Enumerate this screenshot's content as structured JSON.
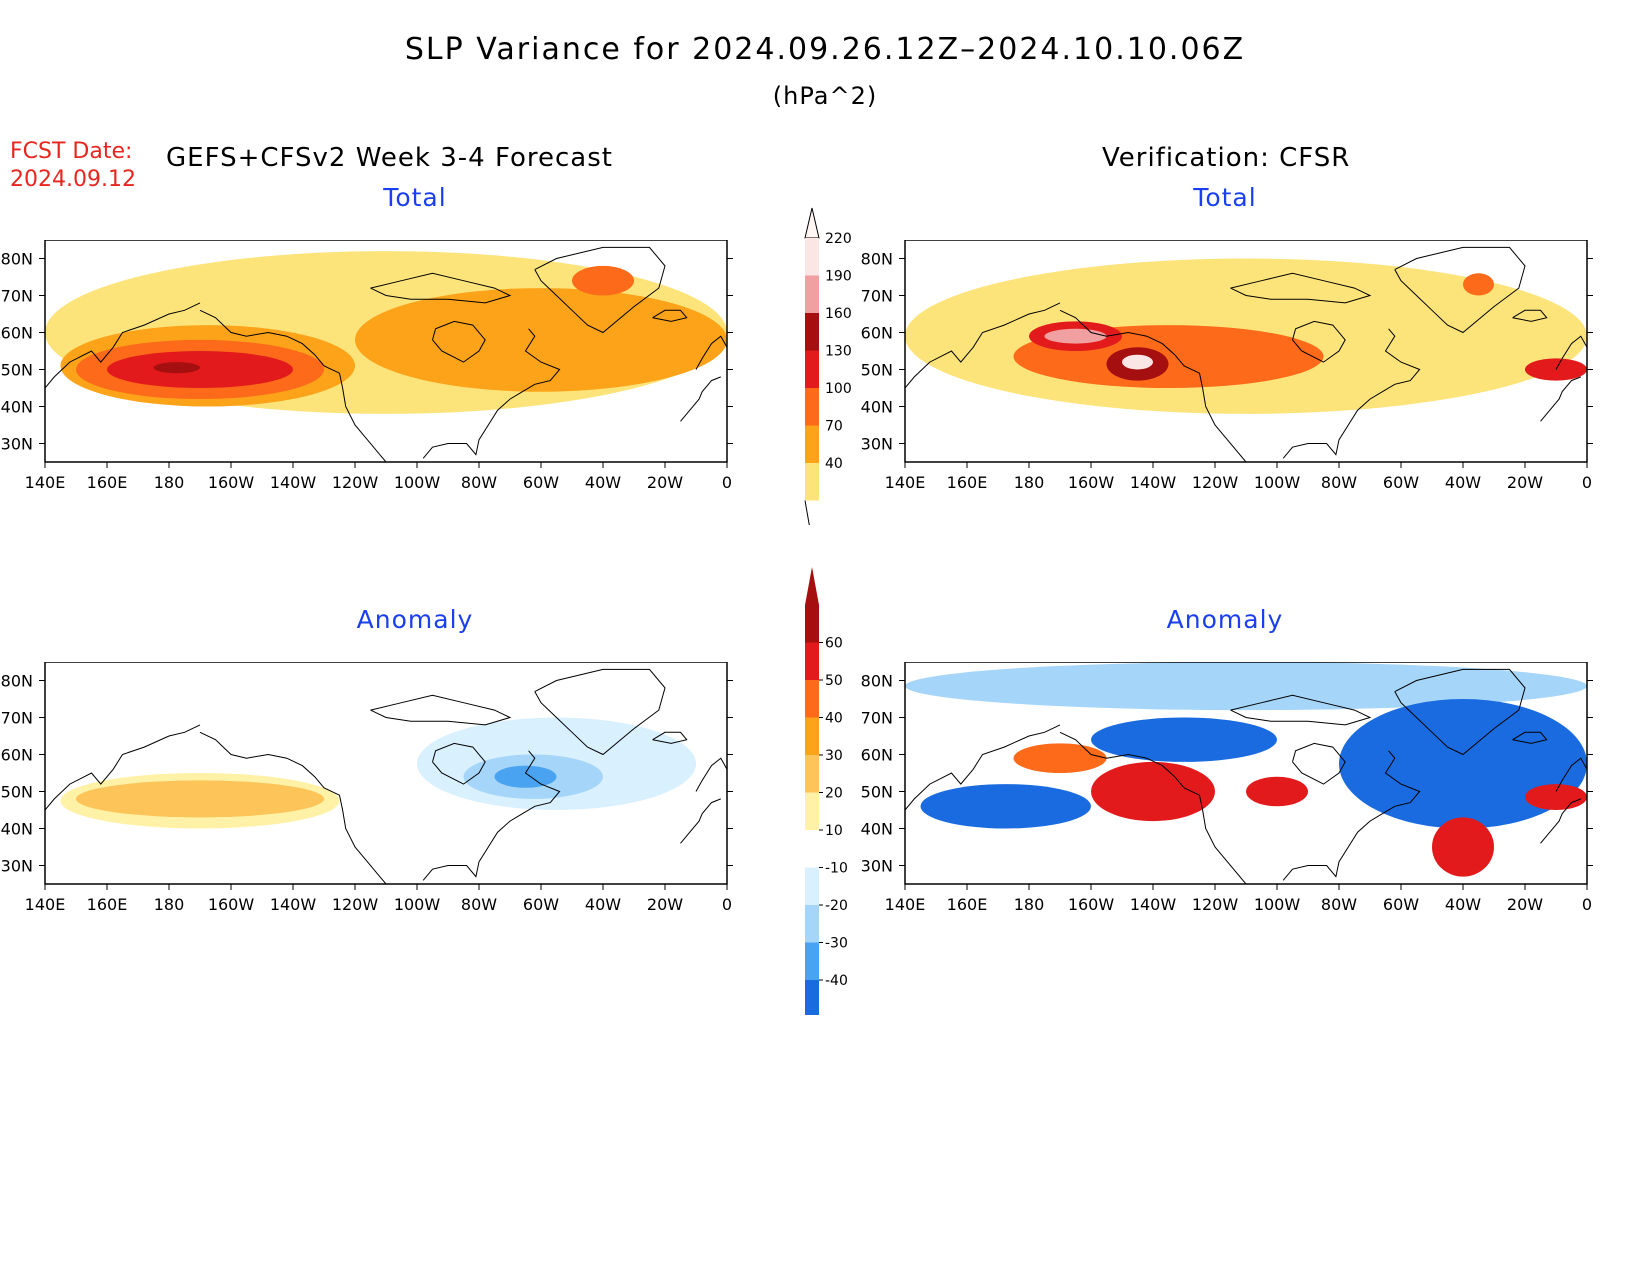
{
  "header": {
    "title": "SLP Variance for 2024.09.26.12Z–2024.10.10.06Z",
    "units": "(hPa^2)",
    "fcst_date_label": "FCST Date:",
    "fcst_date_value": "2024.09.12",
    "forecast_label": "GEFS+CFSv2 Week 3-4 Forecast",
    "verification_label": "Verification: CFSR"
  },
  "axes": {
    "lat_ticks": [
      "80N",
      "70N",
      "60N",
      "50N",
      "40N",
      "30N"
    ],
    "lat_values": [
      80,
      70,
      60,
      50,
      40,
      30
    ],
    "lon_ticks": [
      "140E",
      "160E",
      "180",
      "160W",
      "140W",
      "120W",
      "100W",
      "80W",
      "60W",
      "40W",
      "20W",
      "0"
    ],
    "lon_values": [
      140,
      160,
      180,
      200,
      220,
      240,
      260,
      280,
      300,
      320,
      340,
      360
    ],
    "lon_range": [
      140,
      360
    ],
    "lat_range": [
      25,
      85
    ]
  },
  "panels": [
    {
      "id": "fcst-total",
      "title": "Total",
      "kind": "total"
    },
    {
      "id": "verif-total",
      "title": "Total",
      "kind": "total"
    },
    {
      "id": "fcst-anomaly",
      "title": "Anomaly",
      "kind": "anomaly"
    },
    {
      "id": "verif-anomaly",
      "title": "Anomaly",
      "kind": "anomaly"
    }
  ],
  "colorbars": {
    "total": {
      "labels": [
        "220",
        "190",
        "160",
        "130",
        "100",
        "70",
        "40"
      ],
      "colors": [
        "#fbe6e6",
        "#f0a0a0",
        "#a50f0f",
        "#e31a1c",
        "#fc6a1a",
        "#fca31a",
        "#fde47a"
      ]
    },
    "anomaly": {
      "labels": [
        "60",
        "50",
        "40",
        "30",
        "20",
        "10",
        "-10",
        "-20",
        "-30",
        "-40"
      ],
      "top_color": "#a50f0f",
      "colors": [
        "#a50f0f",
        "#e31a1c",
        "#fc6a1a",
        "#fca31a",
        "#fdc45a",
        "#fff2a6",
        "#ffffff",
        "#d9f0ff",
        "#a6d5fa",
        "#4aa3f0",
        "#1a6be0"
      ],
      "bottom_color": "#1a6be0"
    }
  },
  "chart_data": [
    {
      "type": "heatmap",
      "panel": "fcst-total",
      "title": "Total",
      "variable": "SLP variance",
      "units": "hPa^2",
      "x_range": [
        140,
        360
      ],
      "y_range": [
        25,
        85
      ],
      "features": [
        {
          "level": 40,
          "lon": [
            140,
            360
          ],
          "lat": [
            38,
            82
          ]
        },
        {
          "level": 70,
          "lon": [
            145,
            240
          ],
          "lat": [
            40,
            62
          ]
        },
        {
          "level": 70,
          "lon": [
            240,
            360
          ],
          "lat": [
            44,
            72
          ]
        },
        {
          "level": 100,
          "lon": [
            150,
            230
          ],
          "lat": [
            42,
            58
          ]
        },
        {
          "level": 100,
          "lon": [
            310,
            330
          ],
          "lat": [
            70,
            78
          ]
        },
        {
          "level": 130,
          "lon": [
            160,
            220
          ],
          "lat": [
            45,
            55
          ]
        },
        {
          "level": 160,
          "lon": [
            175,
            190
          ],
          "lat": [
            49,
            52
          ]
        }
      ]
    },
    {
      "type": "heatmap",
      "panel": "verif-total",
      "title": "Total",
      "variable": "SLP variance",
      "units": "hPa^2",
      "x_range": [
        140,
        360
      ],
      "y_range": [
        25,
        85
      ],
      "features": [
        {
          "level": 40,
          "lon": [
            140,
            360
          ],
          "lat": [
            38,
            80
          ]
        },
        {
          "level": 100,
          "lon": [
            175,
            275
          ],
          "lat": [
            45,
            62
          ]
        },
        {
          "level": 130,
          "lon": [
            180,
            210
          ],
          "lat": [
            55,
            63
          ]
        },
        {
          "level": 160,
          "lon": [
            205,
            225
          ],
          "lat": [
            47,
            56
          ]
        },
        {
          "level": 190,
          "lon": [
            185,
            205
          ],
          "lat": [
            57,
            61
          ]
        },
        {
          "level": 220,
          "lon": [
            210,
            220
          ],
          "lat": [
            50,
            54
          ]
        },
        {
          "level": 100,
          "lon": [
            320,
            330
          ],
          "lat": [
            70,
            76
          ]
        },
        {
          "level": 130,
          "lon": [
            340,
            360
          ],
          "lat": [
            47,
            53
          ]
        }
      ]
    },
    {
      "type": "heatmap",
      "panel": "fcst-anomaly",
      "title": "Anomaly",
      "variable": "SLP variance anomaly",
      "units": "hPa^2",
      "x_range": [
        140,
        360
      ],
      "y_range": [
        25,
        85
      ],
      "features": [
        {
          "level": 10,
          "lon": [
            145,
            235
          ],
          "lat": [
            40,
            55
          ]
        },
        {
          "level": 20,
          "lon": [
            150,
            230
          ],
          "lat": [
            43,
            53
          ]
        },
        {
          "level": -10,
          "lon": [
            260,
            350
          ],
          "lat": [
            45,
            70
          ]
        },
        {
          "level": -20,
          "lon": [
            275,
            320
          ],
          "lat": [
            48,
            60
          ]
        },
        {
          "level": -30,
          "lon": [
            285,
            305
          ],
          "lat": [
            51,
            57
          ]
        }
      ]
    },
    {
      "type": "heatmap",
      "panel": "verif-anomaly",
      "title": "Anomaly",
      "variable": "SLP variance anomaly",
      "units": "hPa^2",
      "x_range": [
        140,
        360
      ],
      "y_range": [
        25,
        85
      ],
      "features": [
        {
          "level": -20,
          "lon": [
            140,
            360
          ],
          "lat": [
            72,
            85
          ]
        },
        {
          "level": -40,
          "lon": [
            145,
            200
          ],
          "lat": [
            40,
            52
          ]
        },
        {
          "level": 40,
          "lon": [
            175,
            205
          ],
          "lat": [
            55,
            63
          ]
        },
        {
          "level": 50,
          "lon": [
            200,
            240
          ],
          "lat": [
            42,
            58
          ]
        },
        {
          "level": 50,
          "lon": [
            250,
            270
          ],
          "lat": [
            46,
            54
          ]
        },
        {
          "level": -40,
          "lon": [
            200,
            260
          ],
          "lat": [
            58,
            70
          ]
        },
        {
          "level": -40,
          "lon": [
            280,
            360
          ],
          "lat": [
            40,
            75
          ]
        },
        {
          "level": 50,
          "lon": [
            310,
            330
          ],
          "lat": [
            27,
            43
          ]
        },
        {
          "level": 50,
          "lon": [
            340,
            360
          ],
          "lat": [
            45,
            52
          ]
        }
      ]
    }
  ]
}
